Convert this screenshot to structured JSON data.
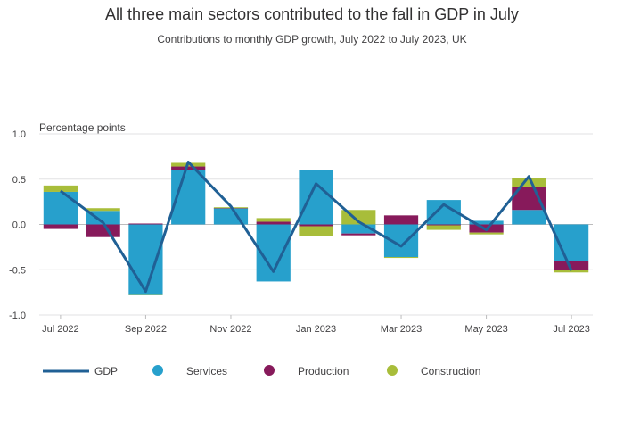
{
  "chart_data": {
    "type": "bar",
    "title": "All three main sectors contributed to the fall in GDP in July",
    "subtitle": "Contributions to monthly GDP growth, July 2022 to July 2023, UK",
    "ylabel": "Percentage points",
    "ylim": [
      -1.0,
      1.0
    ],
    "yticks": [
      "1.0",
      "0.5",
      "0.0",
      "-0.5",
      "-1.0"
    ],
    "ytick_values": [
      1.0,
      0.5,
      0.0,
      -0.5,
      -1.0
    ],
    "categories": [
      "Jul 2022",
      "Aug 2022",
      "Sep 2022",
      "Oct 2022",
      "Nov 2022",
      "Dec 2022",
      "Jan 2023",
      "Feb 2023",
      "Mar 2023",
      "Apr 2023",
      "May 2023",
      "Jun 2023",
      "Jul 2023"
    ],
    "xtick_labels": [
      "Jul 2022",
      "Sep 2022",
      "Nov 2022",
      "Jan 2023",
      "Mar 2023",
      "May 2023",
      "Jul 2023"
    ],
    "xtick_indices": [
      0,
      2,
      4,
      6,
      8,
      10,
      12
    ],
    "stacked": true,
    "series": [
      {
        "name": "Services",
        "kind": "bar",
        "color": "#27a0cc",
        "values": [
          0.36,
          0.15,
          -0.77,
          0.6,
          0.18,
          -0.63,
          0.6,
          -0.1,
          -0.36,
          0.27,
          0.04,
          0.16,
          -0.4
        ]
      },
      {
        "name": "Production",
        "kind": "bar",
        "color": "#871a5b",
        "values": [
          -0.05,
          -0.14,
          0.01,
          0.04,
          0.0,
          0.03,
          -0.02,
          -0.02,
          0.1,
          -0.01,
          -0.09,
          0.25,
          -0.1
        ]
      },
      {
        "name": "Construction",
        "kind": "bar",
        "color": "#a8bd3a",
        "values": [
          0.07,
          0.03,
          -0.01,
          0.04,
          0.01,
          0.04,
          -0.11,
          0.16,
          -0.01,
          -0.05,
          -0.02,
          0.1,
          -0.03
        ]
      },
      {
        "name": "GDP",
        "kind": "line",
        "color": "#206095",
        "values": [
          0.37,
          0.02,
          -0.74,
          0.69,
          0.2,
          -0.52,
          0.45,
          0.03,
          -0.24,
          0.22,
          -0.06,
          0.53,
          -0.51
        ]
      }
    ],
    "legend": [
      "GDP",
      "Services",
      "Production",
      "Construction"
    ],
    "legend_position": "bottom",
    "grid": true
  }
}
